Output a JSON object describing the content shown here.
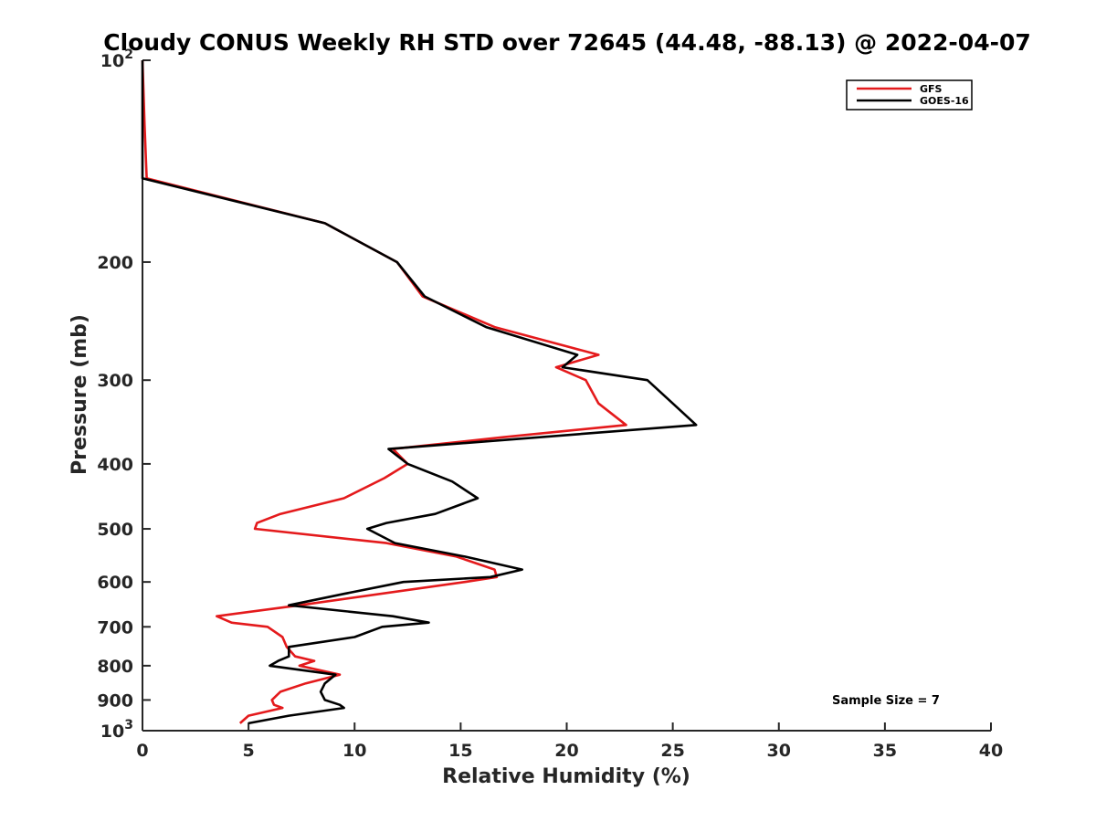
{
  "chart_data": {
    "type": "line",
    "title": "Cloudy CONUS Weekly RH STD over 72645 (44.48, -88.13) @ 2022-04-07",
    "xlabel": "Relative Humidity (%)",
    "ylabel": "Pressure (mb)",
    "xlim": [
      0,
      40
    ],
    "ylim": [
      100,
      1000
    ],
    "y_scale": "log",
    "y_reversed": true,
    "grid": false,
    "legend_position": "top-right",
    "x_ticks": [
      0,
      5,
      10,
      15,
      20,
      25,
      30,
      35,
      40
    ],
    "x_tick_labels": [
      "0",
      "5",
      "10",
      "15",
      "20",
      "25",
      "30",
      "35",
      "40"
    ],
    "y_ticks": [
      100,
      200,
      300,
      400,
      500,
      600,
      700,
      800,
      900,
      1000
    ],
    "y_tick_labels": [
      {
        "base": "10",
        "exp": "2"
      },
      {
        "base": "200",
        "exp": ""
      },
      {
        "base": "300",
        "exp": ""
      },
      {
        "base": "400",
        "exp": ""
      },
      {
        "base": "500",
        "exp": ""
      },
      {
        "base": "600",
        "exp": ""
      },
      {
        "base": "700",
        "exp": ""
      },
      {
        "base": "800",
        "exp": ""
      },
      {
        "base": "900",
        "exp": ""
      },
      {
        "base": "10",
        "exp": "3"
      }
    ],
    "series": [
      {
        "name": "GFS",
        "color": "#e41a1c",
        "points": [
          [
            0.0,
            100
          ],
          [
            0.1,
            125
          ],
          [
            0.2,
            150
          ],
          [
            8.6,
            175
          ],
          [
            12.0,
            200
          ],
          [
            13.2,
            225
          ],
          [
            16.6,
            250
          ],
          [
            21.5,
            275
          ],
          [
            19.5,
            287
          ],
          [
            20.9,
            300
          ],
          [
            21.5,
            325
          ],
          [
            22.8,
            350
          ],
          [
            17.0,
            365
          ],
          [
            11.8,
            380
          ],
          [
            12.5,
            400
          ],
          [
            11.4,
            420
          ],
          [
            9.5,
            450
          ],
          [
            6.5,
            475
          ],
          [
            5.4,
            490
          ],
          [
            5.3,
            500
          ],
          [
            11.5,
            525
          ],
          [
            14.8,
            550
          ],
          [
            16.6,
            575
          ],
          [
            16.7,
            590
          ],
          [
            15.2,
            600
          ],
          [
            7.4,
            650
          ],
          [
            3.5,
            675
          ],
          [
            4.2,
            690
          ],
          [
            5.9,
            700
          ],
          [
            6.6,
            725
          ],
          [
            6.8,
            750
          ],
          [
            7.2,
            775
          ],
          [
            8.1,
            787
          ],
          [
            7.4,
            800
          ],
          [
            9.3,
            825
          ],
          [
            7.7,
            850
          ],
          [
            6.5,
            875
          ],
          [
            6.1,
            900
          ],
          [
            6.2,
            915
          ],
          [
            6.6,
            925
          ],
          [
            5.0,
            950
          ],
          [
            4.6,
            975
          ]
        ]
      },
      {
        "name": "GOES-16",
        "color": "#000000",
        "points": [
          [
            0.0,
            100
          ],
          [
            0.0,
            125
          ],
          [
            0.0,
            150
          ],
          [
            8.6,
            175
          ],
          [
            12.0,
            200
          ],
          [
            13.3,
            225
          ],
          [
            16.2,
            250
          ],
          [
            20.5,
            275
          ],
          [
            19.8,
            287
          ],
          [
            23.8,
            300
          ],
          [
            25.0,
            325
          ],
          [
            26.1,
            350
          ],
          [
            11.6,
            380
          ],
          [
            12.5,
            400
          ],
          [
            14.6,
            425
          ],
          [
            15.8,
            450
          ],
          [
            13.8,
            475
          ],
          [
            11.5,
            490
          ],
          [
            10.6,
            500
          ],
          [
            11.9,
            525
          ],
          [
            15.2,
            550
          ],
          [
            17.9,
            575
          ],
          [
            16.4,
            590
          ],
          [
            12.3,
            600
          ],
          [
            9.5,
            625
          ],
          [
            6.9,
            650
          ],
          [
            11.8,
            675
          ],
          [
            13.5,
            690
          ],
          [
            11.3,
            700
          ],
          [
            10.0,
            725
          ],
          [
            6.9,
            750
          ],
          [
            6.9,
            775
          ],
          [
            6.4,
            787
          ],
          [
            6.0,
            800
          ],
          [
            9.1,
            825
          ],
          [
            8.6,
            850
          ],
          [
            8.4,
            875
          ],
          [
            8.6,
            900
          ],
          [
            9.3,
            915
          ],
          [
            9.5,
            925
          ],
          [
            6.9,
            950
          ],
          [
            5.0,
            975
          ]
        ]
      }
    ],
    "annotation": "Sample Size = 7"
  }
}
